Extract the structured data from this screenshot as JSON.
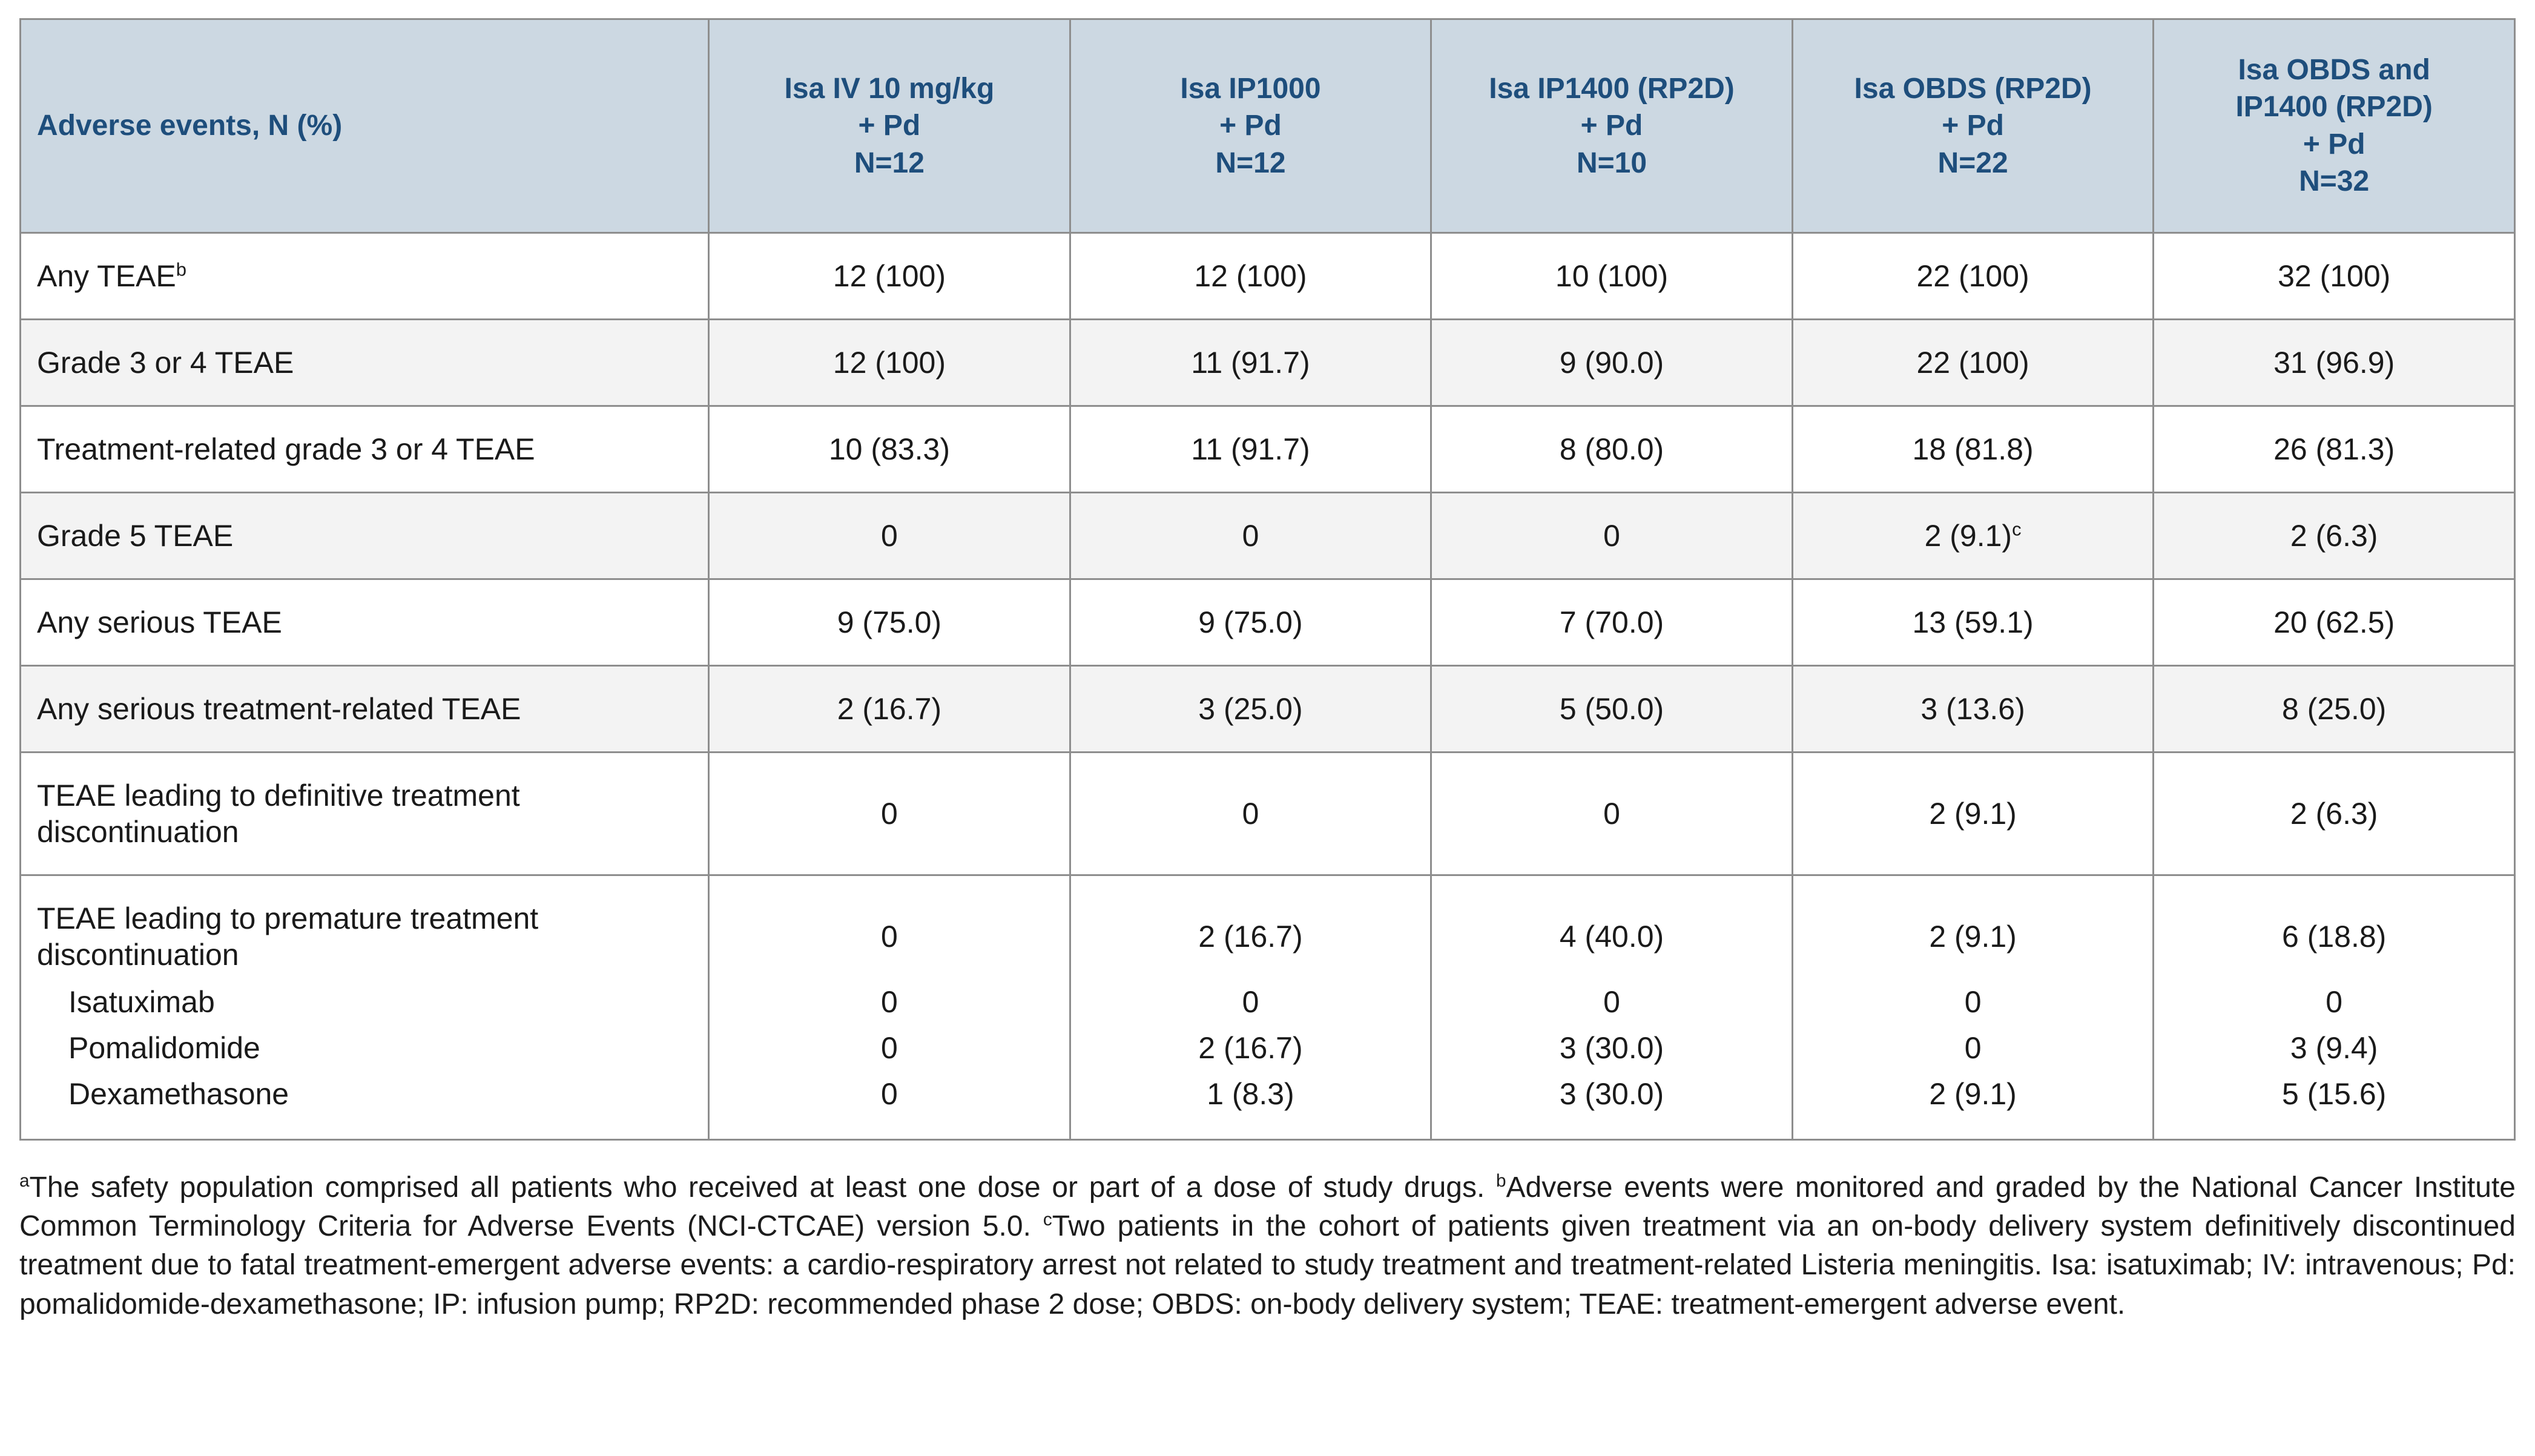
{
  "colors": {
    "header_bg": "#ccd8e2",
    "header_text": "#1e4e7c",
    "alt_row_bg": "#f3f3f3",
    "border": "#8e8e8e",
    "body_text": "#1a1a1a"
  },
  "table": {
    "header": {
      "label": "Adverse events, N (%)",
      "columns": [
        "Isa IV 10 mg/kg\n+ Pd\nN=12",
        "Isa IP1000\n+ Pd\nN=12",
        "Isa IP1400 (RP2D)\n+ Pd\nN=10",
        "Isa OBDS (RP2D)\n+ Pd\nN=22",
        "Isa OBDS and\nIP1400 (RP2D)\n+ Pd\nN=32"
      ]
    },
    "rows": [
      {
        "label": "Any TEAE",
        "label_sup": "b",
        "values": [
          "12 (100)",
          "12 (100)",
          "10 (100)",
          "22 (100)",
          "32 (100)"
        ]
      },
      {
        "label": "Grade 3 or 4 TEAE",
        "values": [
          "12 (100)",
          "11 (91.7)",
          "9 (90.0)",
          "22 (100)",
          "31 (96.9)"
        ]
      },
      {
        "label": "Treatment-related grade 3 or 4 TEAE",
        "values": [
          "10 (83.3)",
          "11 (91.7)",
          "8 (80.0)",
          "18 (81.8)",
          "26 (81.3)"
        ]
      },
      {
        "label": "Grade 5 TEAE",
        "value_sup": "c",
        "values": [
          "0",
          "0",
          "0",
          "2 (9.1)",
          "2 (6.3)"
        ]
      },
      {
        "label": "Any serious TEAE",
        "values": [
          "9 (75.0)",
          "9 (75.0)",
          "7 (70.0)",
          "13 (59.1)",
          "20 (62.5)"
        ]
      },
      {
        "label": "Any serious treatment-related TEAE",
        "values": [
          "2 (16.7)",
          "3 (25.0)",
          "5 (50.0)",
          "3 (13.6)",
          "8 (25.0)"
        ]
      },
      {
        "label": "TEAE leading to definitive treatment discontinuation",
        "values": [
          "0",
          "0",
          "0",
          "2 (9.1)",
          "2 (6.3)"
        ]
      },
      {
        "label": "TEAE leading to premature treatment discontinuation",
        "values": [
          "0",
          "2 (16.7)",
          "4 (40.0)",
          "2 (9.1)",
          "6 (18.8)"
        ]
      },
      {
        "label": "Isatuximab",
        "values": [
          "0",
          "0",
          "0",
          "0",
          "0"
        ]
      },
      {
        "label": "Pomalidomide",
        "values": [
          "0",
          "2 (16.7)",
          "3 (30.0)",
          "0",
          "3 (9.4)"
        ]
      },
      {
        "label": "Dexamethasone",
        "values": [
          "0",
          "1 (8.3)",
          "3 (30.0)",
          "2 (9.1)",
          "5 (15.6)"
        ]
      }
    ]
  },
  "footnote": {
    "segments": [
      {
        "sup": "a",
        "text": "The safety population comprised all patients who received at least one dose or part of a dose of study drugs. "
      },
      {
        "sup": "b",
        "text": "Adverse events were monitored and graded by the National Cancer Institute Common Terminology Criteria for Adverse Events (NCI-CTCAE) version 5.0. "
      },
      {
        "sup": "c",
        "text": "Two patients in the cohort of patients given treatment via an on-body delivery system definitively discontinued treatment due to fatal treatment-emergent adverse events: a cardio-respiratory arrest not related to study treatment and treatment-related Listeria meningitis. Isa: isatuximab; IV: intravenous; Pd: pomalidomide-dexamethasone; IP: infusion pump; RP2D: recommended phase 2 dose; OBDS: on-body delivery system; TEAE: treatment-emergent adverse event."
      }
    ]
  }
}
